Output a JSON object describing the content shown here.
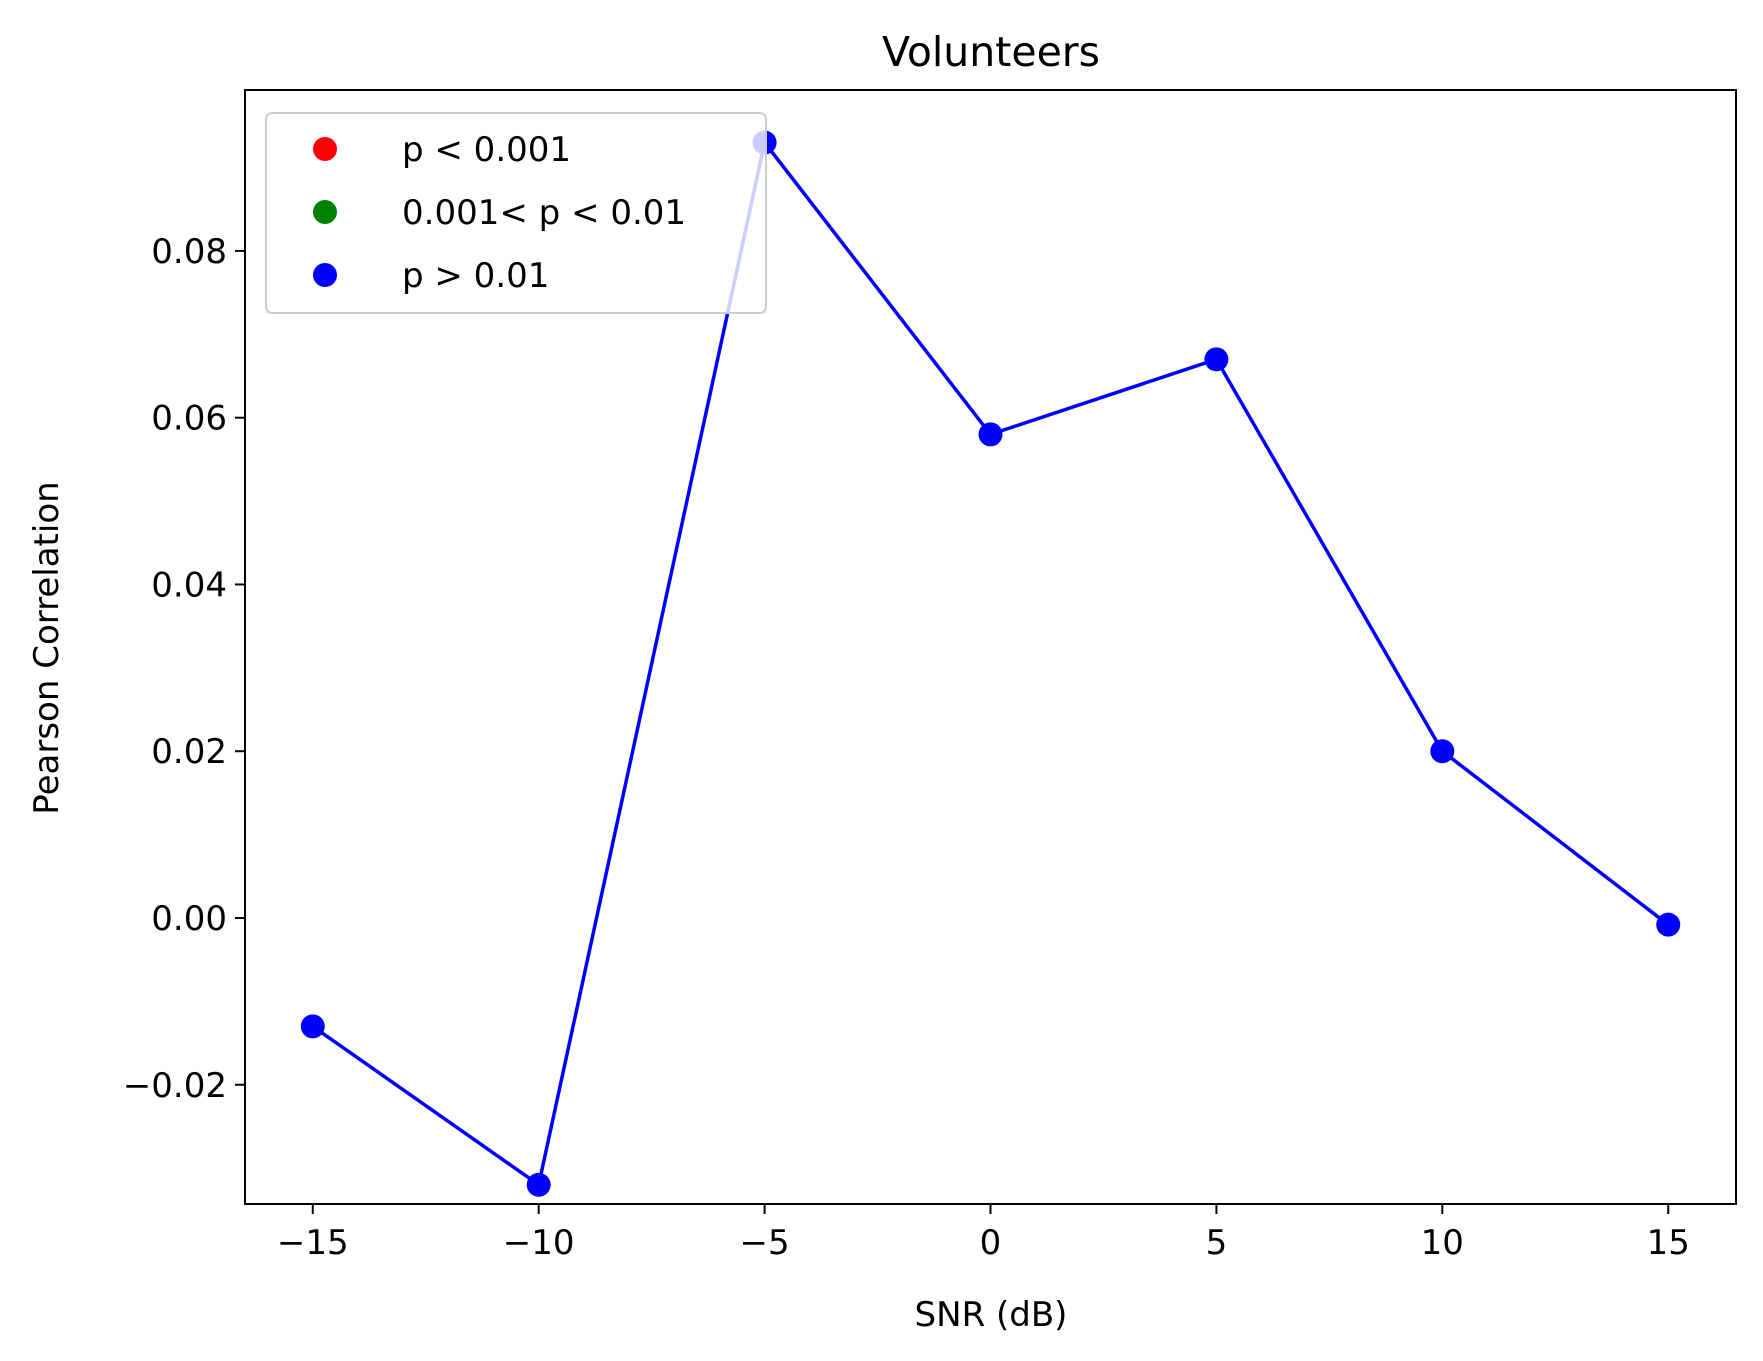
{
  "chart_data": {
    "type": "line",
    "title": "Volunteers",
    "xlabel": "SNR (dB)",
    "ylabel": "Pearson Correlation",
    "x": [
      -15,
      -10,
      -5,
      0,
      5,
      10,
      15
    ],
    "series": [
      {
        "values": [
          -0.013,
          -0.032,
          0.093,
          0.058,
          0.067,
          0.02,
          -0.0008
        ],
        "color": "#0000ff",
        "point_color": "#0000ff"
      }
    ],
    "xlim": [
      -16.5,
      16.5
    ],
    "ylim": [
      -0.0343,
      0.0993
    ],
    "xticks": [
      -15,
      -10,
      -5,
      0,
      5,
      10,
      15
    ],
    "xtick_labels": [
      "−15",
      "−10",
      "−5",
      "0",
      "5",
      "10",
      "15"
    ],
    "yticks": [
      -0.02,
      0.0,
      0.02,
      0.04,
      0.06,
      0.08
    ],
    "ytick_labels": [
      "−0.02",
      "0.00",
      "0.02",
      "0.04",
      "0.06",
      "0.08"
    ],
    "grid": false,
    "legend": {
      "placement": "top-left",
      "entries": [
        {
          "label": "p < 0.001",
          "color": "#ff0000"
        },
        {
          "label": "0.001< p < 0.01",
          "color": "#008000"
        },
        {
          "label": "p > 0.01",
          "color": "#0000ff"
        }
      ]
    }
  }
}
